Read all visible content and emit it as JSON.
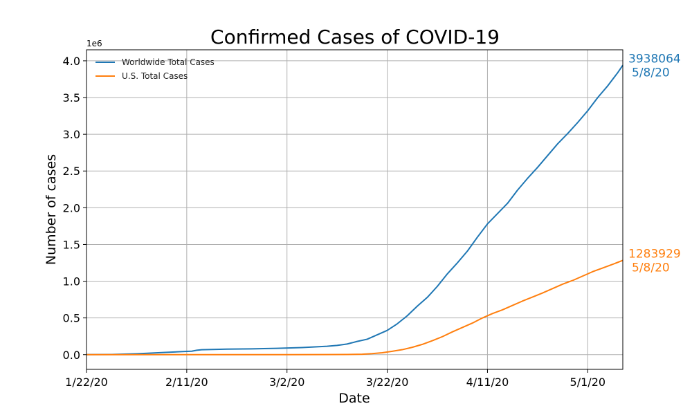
{
  "chart_data": {
    "type": "line",
    "title": "Confirmed Cases of COVID-19",
    "xlabel": "Date",
    "ylabel": "Number of cases",
    "y_offset_label": "1e6",
    "x_start": "1/22/20",
    "x_end": "5/8/20",
    "xlim": [
      "1/22/20",
      "5/8/20"
    ],
    "ylim": [
      -0.2,
      4.15
    ],
    "x_ticks": [
      "1/22/20",
      "2/11/20",
      "3/2/20",
      "3/22/20",
      "4/11/20",
      "5/1/20"
    ],
    "y_ticks": [
      "0.0",
      "0.5",
      "1.0",
      "1.5",
      "2.0",
      "2.5",
      "3.0",
      "3.5",
      "4.0"
    ],
    "grid": true,
    "legend_position": "top-left",
    "series": [
      {
        "name": "Worldwide Total Cases",
        "color": "#1f77b4",
        "end_value": "3938064",
        "end_date": "5/8/20",
        "points": [
          [
            "1/22/20",
            0.0006
          ],
          [
            "1/27/20",
            0.003
          ],
          [
            "2/1/20",
            0.012
          ],
          [
            "2/6/20",
            0.028
          ],
          [
            "2/11/20",
            0.045
          ],
          [
            "2/12/20",
            0.047
          ],
          [
            "2/13/20",
            0.06
          ],
          [
            "2/14/20",
            0.067
          ],
          [
            "2/19/20",
            0.076
          ],
          [
            "2/24/20",
            0.079
          ],
          [
            "2/29/20",
            0.086
          ],
          [
            "3/5/20",
            0.097
          ],
          [
            "3/10/20",
            0.114
          ],
          [
            "3/12/20",
            0.126
          ],
          [
            "3/14/20",
            0.145
          ],
          [
            "3/16/20",
            0.18
          ],
          [
            "3/18/20",
            0.21
          ],
          [
            "3/20/20",
            0.27
          ],
          [
            "3/22/20",
            0.33
          ],
          [
            "3/24/20",
            0.42
          ],
          [
            "3/26/20",
            0.53
          ],
          [
            "3/28/20",
            0.66
          ],
          [
            "3/30/20",
            0.78
          ],
          [
            "4/1/20",
            0.93
          ],
          [
            "4/3/20",
            1.1
          ],
          [
            "4/5/20",
            1.25
          ],
          [
            "4/7/20",
            1.41
          ],
          [
            "4/9/20",
            1.6
          ],
          [
            "4/11/20",
            1.78
          ],
          [
            "4/13/20",
            1.92
          ],
          [
            "4/15/20",
            2.06
          ],
          [
            "4/17/20",
            2.24
          ],
          [
            "4/19/20",
            2.4
          ],
          [
            "4/21/20",
            2.55
          ],
          [
            "4/23/20",
            2.71
          ],
          [
            "4/25/20",
            2.87
          ],
          [
            "4/27/20",
            3.01
          ],
          [
            "4/29/20",
            3.16
          ],
          [
            "5/1/20",
            3.32
          ],
          [
            "5/3/20",
            3.5
          ],
          [
            "5/5/20",
            3.66
          ],
          [
            "5/7/20",
            3.84
          ],
          [
            "5/8/20",
            3.94
          ]
        ]
      },
      {
        "name": "U.S. Total Cases",
        "color": "#ff7f0e",
        "end_value": "1283929",
        "end_date": "5/8/20",
        "points": [
          [
            "1/22/20",
            0.0
          ],
          [
            "2/11/20",
            0.0
          ],
          [
            "3/2/20",
            0.0001
          ],
          [
            "3/10/20",
            0.001
          ],
          [
            "3/14/20",
            0.003
          ],
          [
            "3/17/20",
            0.006
          ],
          [
            "3/19/20",
            0.014
          ],
          [
            "3/21/20",
            0.026
          ],
          [
            "3/23/20",
            0.046
          ],
          [
            "3/25/20",
            0.068
          ],
          [
            "3/27/20",
            0.1
          ],
          [
            "3/29/20",
            0.14
          ],
          [
            "3/31/20",
            0.19
          ],
          [
            "4/2/20",
            0.245
          ],
          [
            "4/4/20",
            0.31
          ],
          [
            "4/6/20",
            0.37
          ],
          [
            "4/8/20",
            0.43
          ],
          [
            "4/10/20",
            0.5
          ],
          [
            "4/12/20",
            0.56
          ],
          [
            "4/14/20",
            0.61
          ],
          [
            "4/16/20",
            0.67
          ],
          [
            "4/18/20",
            0.73
          ],
          [
            "4/20/20",
            0.785
          ],
          [
            "4/22/20",
            0.84
          ],
          [
            "4/24/20",
            0.9
          ],
          [
            "4/26/20",
            0.96
          ],
          [
            "4/28/20",
            1.01
          ],
          [
            "4/30/20",
            1.07
          ],
          [
            "5/2/20",
            1.13
          ],
          [
            "5/4/20",
            1.18
          ],
          [
            "5/6/20",
            1.23
          ],
          [
            "5/8/20",
            1.284
          ]
        ]
      }
    ]
  }
}
